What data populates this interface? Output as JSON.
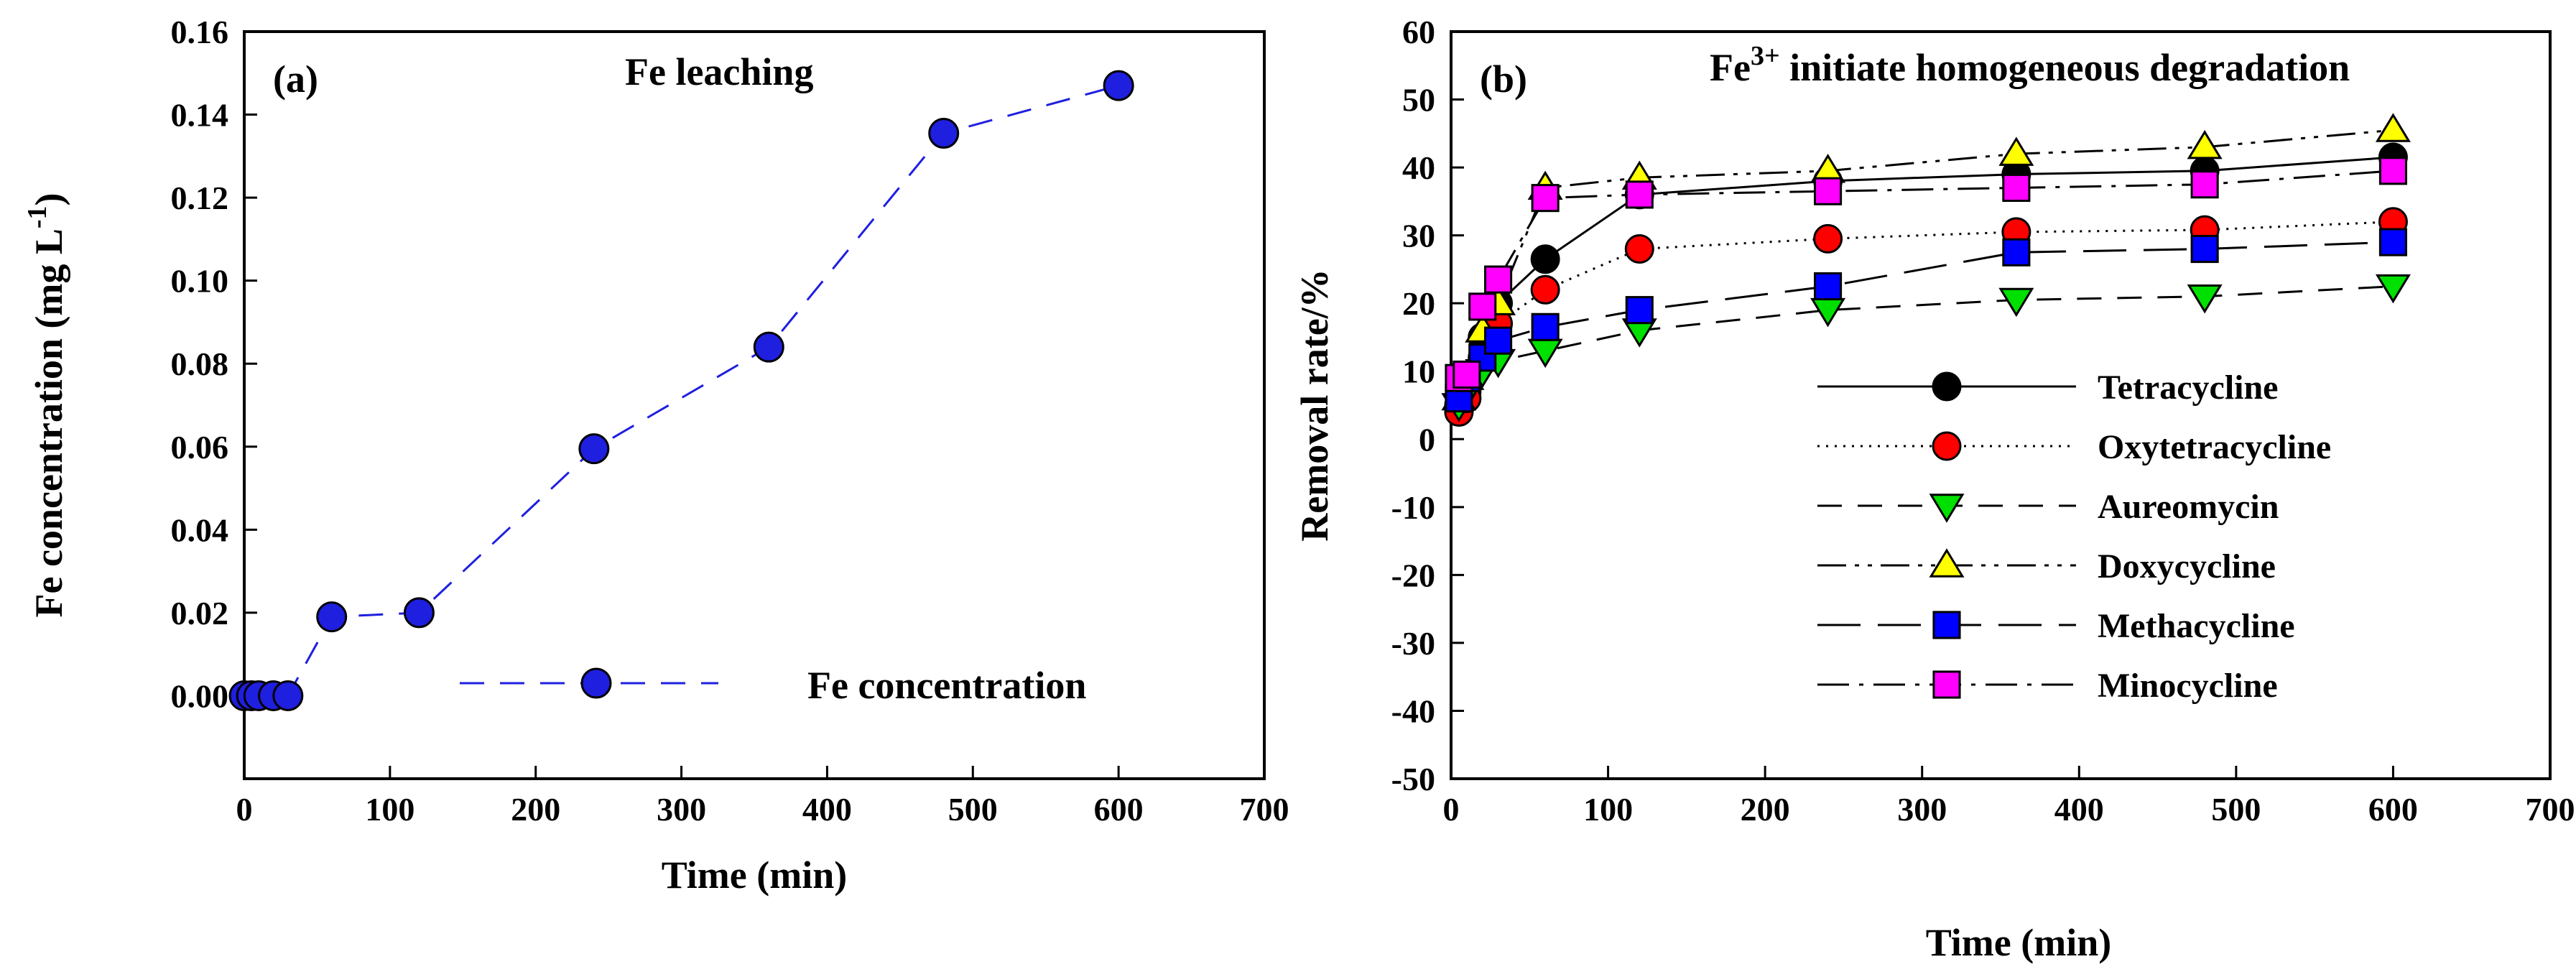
{
  "chart_data": [
    {
      "type": "line",
      "panel_label": "(a)",
      "title": "Fe leaching",
      "xlabel": "Time (min)",
      "ylabel": "Fe concentration (mg L",
      "ylabel_sup": "-1",
      "ylabel_end": ")",
      "xlim": [
        0,
        700
      ],
      "ylim": [
        -0.02,
        0.16
      ],
      "xticks": [
        "0",
        "100",
        "200",
        "300",
        "400",
        "500",
        "600",
        "700"
      ],
      "yticks": [
        "0.00",
        "0.02",
        "0.04",
        "0.06",
        "0.08",
        "0.10",
        "0.12",
        "0.14",
        "0.16"
      ],
      "series": [
        {
          "name": "Fe concentration",
          "color": "#1f1fe0",
          "marker": "circle",
          "linestyle": "dashed",
          "x": [
            0,
            5,
            10,
            20,
            30,
            60,
            120,
            240,
            360,
            480,
            600
          ],
          "y": [
            0,
            0,
            0,
            0,
            0,
            0.019,
            0.02,
            0.0595,
            0.084,
            0.1355,
            0.147
          ]
        }
      ],
      "legend_position": "lower-right",
      "grid": false
    },
    {
      "type": "line",
      "panel_label": "(b)",
      "title": "Fe",
      "title_sup": "3+",
      "title_end": " initiate homogeneous degradation",
      "xlabel": "Time (min)",
      "ylabel": "Removal rate/%",
      "xlim": [
        0,
        700
      ],
      "ylim": [
        -50,
        60
      ],
      "xticks": [
        "0",
        "100",
        "200",
        "300",
        "400",
        "500",
        "600",
        "700"
      ],
      "yticks": [
        "-50",
        "-40",
        "-30",
        "-20",
        "-10",
        "0",
        "10",
        "20",
        "30",
        "40",
        "50",
        "60"
      ],
      "x": [
        5,
        10,
        20,
        30,
        60,
        120,
        240,
        360,
        480,
        600
      ],
      "series": [
        {
          "name": "Tetracycline",
          "color": "#000000",
          "marker": "circle",
          "linestyle": "solid",
          "values": [
            5,
            7,
            15,
            20,
            26.5,
            36,
            38,
            39,
            39.5,
            41.5
          ]
        },
        {
          "name": "Oxytetracycline",
          "color": "#ff0000",
          "marker": "circle",
          "linestyle": "dotted",
          "values": [
            4,
            6,
            12,
            17,
            22,
            28,
            29.5,
            30.5,
            30.8,
            32
          ]
        },
        {
          "name": "Aureomycin",
          "color": "#00e000",
          "marker": "triangle-down",
          "linestyle": "dashed",
          "values": [
            5,
            7,
            10,
            11.5,
            13,
            16,
            19,
            20.5,
            21,
            22.5
          ]
        },
        {
          "name": "Doxycycline",
          "color": "#ffff00",
          "marker": "triangle-up",
          "linestyle": "dash-dot-dot",
          "values": [
            6,
            9,
            16,
            20,
            37,
            38.5,
            39.5,
            42,
            43,
            45.5
          ]
        },
        {
          "name": "Methacycline",
          "color": "#0000ff",
          "marker": "square",
          "linestyle": "long-dash",
          "values": [
            6,
            9,
            12,
            14.5,
            16.5,
            19,
            22.5,
            27.5,
            28,
            29
          ]
        },
        {
          "name": "Minocycline",
          "color": "#ff00ff",
          "marker": "square",
          "linestyle": "dash-dot",
          "values": [
            9,
            9.5,
            19.5,
            23.5,
            35.5,
            36,
            36.5,
            37,
            37.5,
            39.5
          ]
        }
      ],
      "legend_position": "center-right",
      "grid": false
    }
  ]
}
